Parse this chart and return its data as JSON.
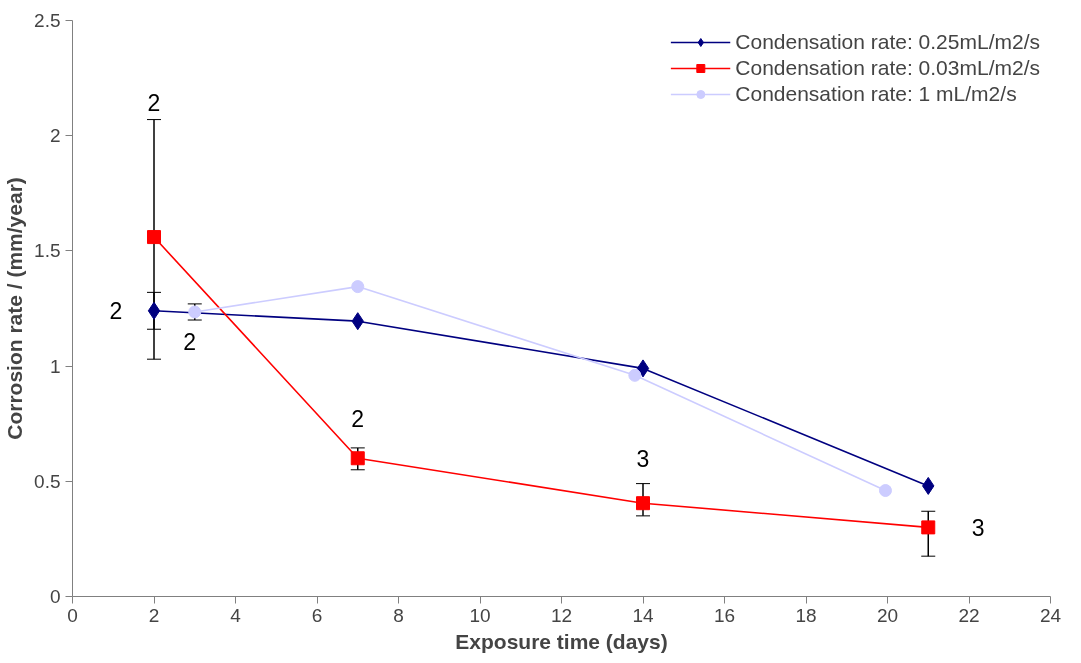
{
  "chart_data": {
    "type": "line",
    "xlabel": "Exposure time (days)",
    "ylabel": "Corrosion rate / (mm/year)",
    "xlim": [
      0,
      24
    ],
    "xticks": [
      0,
      2,
      4,
      6,
      8,
      10,
      12,
      14,
      16,
      18,
      20,
      22,
      24
    ],
    "ylim": [
      0,
      2.5
    ],
    "yticks": [
      0,
      0.5,
      1,
      1.5,
      2,
      2.5
    ],
    "grid": false,
    "legend": "top right",
    "series": [
      {
        "name": "Condensation rate: 0.25mL/m2/s",
        "color": "#000080",
        "marker": "diamond",
        "x": [
          2,
          7,
          14,
          21
        ],
        "values": [
          1.24,
          1.195,
          0.99,
          0.48
        ],
        "errors": [
          [
            1.16,
            1.32
          ],
          null,
          null,
          null
        ]
      },
      {
        "name": "Condensation rate: 0.03mL/m2/s",
        "color": "#ff0000",
        "marker": "square",
        "x": [
          2,
          7,
          14,
          21
        ],
        "values": [
          1.56,
          0.6,
          0.405,
          0.3
        ],
        "errors": [
          [
            1.03,
            2.07
          ],
          [
            0.55,
            0.645
          ],
          [
            0.35,
            0.49
          ],
          [
            0.175,
            0.37
          ]
        ]
      },
      {
        "name": "Condensation rate: 1 mL/m2/s",
        "color": "#ccccff",
        "marker": "circle",
        "x": [
          3,
          7,
          13.8,
          19.95
        ],
        "values": [
          1.235,
          1.345,
          0.96,
          0.46
        ],
        "errors": [
          [
            1.2,
            1.27
          ],
          null,
          null,
          null
        ]
      }
    ],
    "annotations": [
      "2",
      "2",
      "2",
      "2",
      "3",
      "3"
    ]
  }
}
